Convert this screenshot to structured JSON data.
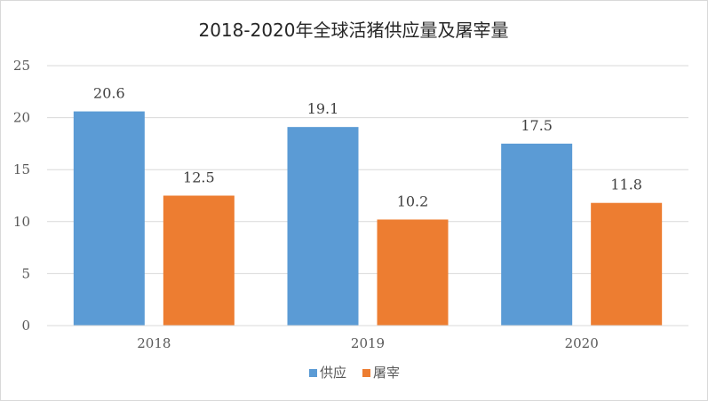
{
  "chart_data": {
    "type": "bar",
    "title": "2018-2020年全球活猪供应量及屠宰量",
    "categories": [
      "2018",
      "2019",
      "2020"
    ],
    "series": [
      {
        "name": "供应",
        "values": [
          20.6,
          19.1,
          17.5
        ],
        "color": "#5b9bd5"
      },
      {
        "name": "屠宰",
        "values": [
          12.5,
          10.2,
          11.8
        ],
        "color": "#ed7d31"
      }
    ],
    "ylim": [
      0,
      25
    ],
    "yticks": [
      0,
      5,
      10,
      15,
      20,
      25
    ],
    "grid": true,
    "legend_position": "bottom",
    "data_labels": true
  }
}
